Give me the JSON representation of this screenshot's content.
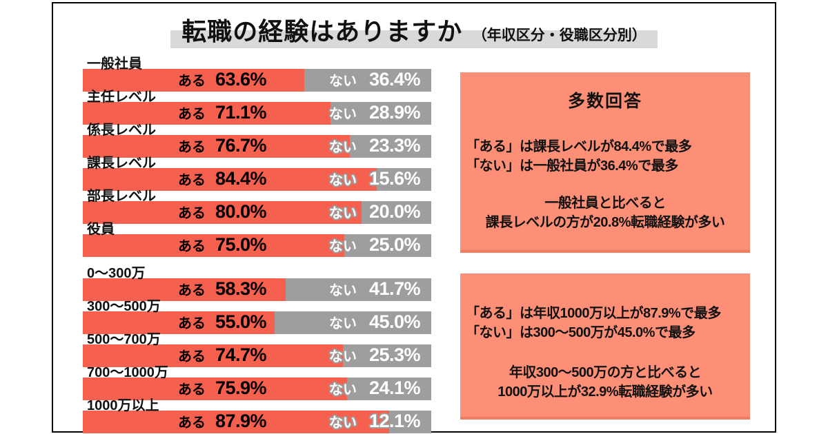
{
  "title": {
    "main": "転職の経験はありますか",
    "sub": "（年収区分・役職区分別）"
  },
  "series": {
    "yes_label": "ある",
    "no_label": "ない"
  },
  "colors": {
    "bar_yes": "#f6604e",
    "bar_no": "#9e9e9e",
    "panel": "#fc8f75",
    "panel_edge": "#ef7d62",
    "title_band": "#d9d9d9"
  },
  "chart_data": {
    "type": "bar",
    "orientation": "horizontal_stacked",
    "unit": "%",
    "xlim": [
      0,
      100
    ],
    "series_names": [
      "ある",
      "ない"
    ],
    "groups": [
      {
        "name": "役職区分",
        "rows": [
          {
            "label": "一般社員",
            "yes": 63.6,
            "no": 36.4
          },
          {
            "label": "主任レベル",
            "yes": 71.1,
            "no": 28.9
          },
          {
            "label": "係長レベル",
            "yes": 76.7,
            "no": 23.3
          },
          {
            "label": "課長レベル",
            "yes": 84.4,
            "no": 15.6
          },
          {
            "label": "部長レベル",
            "yes": 80.0,
            "no": 20.0
          },
          {
            "label": "役員",
            "yes": 75.0,
            "no": 25.0
          }
        ]
      },
      {
        "name": "年収区分",
        "rows": [
          {
            "label": "0〜300万",
            "yes": 58.3,
            "no": 41.7
          },
          {
            "label": "300〜500万",
            "yes": 55.0,
            "no": 45.0
          },
          {
            "label": "500〜700万",
            "yes": 74.7,
            "no": 25.3
          },
          {
            "label": "700〜1000万",
            "yes": 75.9,
            "no": 24.1
          },
          {
            "label": "1000万以上",
            "yes": 87.9,
            "no": 12.1
          }
        ]
      }
    ]
  },
  "panels": [
    {
      "heading": "多数回答",
      "facts": [
        "「ある」は課長レベルが84.4%で最多",
        "「ない」は一般社員が36.4%で最多"
      ],
      "comparison": [
        "一般社員と比べると",
        "課長レベルの方が20.8%転職経験が多い"
      ]
    },
    {
      "facts": [
        "「ある」は年収1000万以上が87.9%で最多",
        "「ない」は300〜500万が45.0%で最多"
      ],
      "comparison": [
        "年収300〜500万の方と比べると",
        "1000万以上が32.9%転職経験が多い"
      ]
    }
  ]
}
